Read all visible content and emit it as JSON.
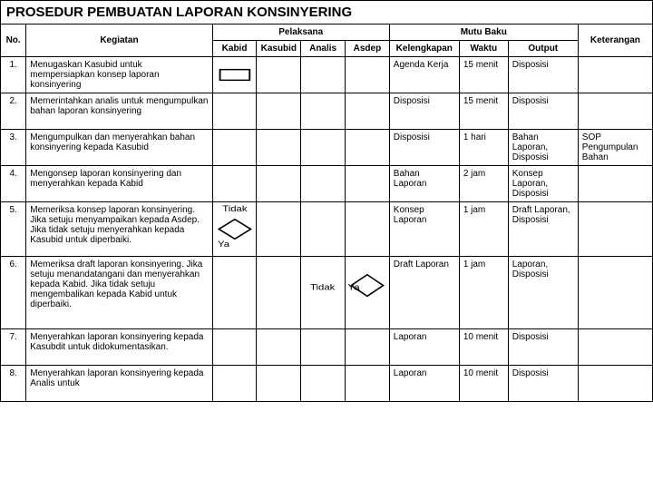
{
  "title": "PROSEDUR PEMBUATAN LAPORAN KONSINYERING",
  "headers": {
    "no": "No.",
    "kegiatan": "Kegiatan",
    "pelaksana": "Pelaksana",
    "mutu": "Mutu Baku",
    "keterangan": "Keterangan",
    "p1": "Kabid",
    "p2": "Kasubid",
    "p3": "Analis",
    "p4": "Asdep",
    "m1": "Kelengkapan",
    "m2": "Waktu",
    "m3": "Output"
  },
  "rows": [
    {
      "no": "1.",
      "kegiatan": "Menugaskan Kasubid untuk mempersiapkan konsep laporan konsinyering",
      "kelengkapan": "Agenda Kerja",
      "waktu": "15 menit",
      "output": "Disposisi",
      "ket": ""
    },
    {
      "no": "2.",
      "kegiatan": "Memerintahkan analis untuk mengumpulkan bahan laporan konsinyering",
      "kelengkapan": "Disposisi",
      "waktu": "15 menit",
      "output": "Disposisi",
      "ket": ""
    },
    {
      "no": "3.",
      "kegiatan": "Mengumpulkan dan menyerahkan bahan konsinyering kepada Kasubid",
      "kelengkapan": "Disposisi",
      "waktu": "1 hari",
      "output": "Bahan Laporan, Disposisi",
      "ket": "SOP Pengumpulan Bahan"
    },
    {
      "no": "4.",
      "kegiatan": "Mengonsep laporan konsinyering dan menyerahkan kepada Kabid",
      "kelengkapan": "Bahan Laporan",
      "waktu": "2 jam",
      "output": "Konsep Laporan, Disposisi",
      "ket": ""
    },
    {
      "no": "5.",
      "kegiatan": "Memeriksa konsep laporan konsinyering. Jika setuju menyampaikan kepada Asdep. Jika tidak setuju menyerahkan kepada Kasubid untuk diperbaiki.",
      "kelengkapan": "Konsep Laporan",
      "waktu": "1 jam",
      "output": "Draft Laporan, Disposisi",
      "ket": ""
    },
    {
      "no": "6.",
      "kegiatan": "Memeriksa draft laporan konsinyering. Jika setuju menandatangani dan menyerahkan kepada Kabid. Jika tidak setuju mengembalikan kepada Kabid untuk diperbaiki.",
      "kelengkapan": "Draft Laporan",
      "waktu": "1 jam",
      "output": "Laporan, Disposisi",
      "ket": ""
    },
    {
      "no": "7.",
      "kegiatan": "Menyerahkan laporan konsinyering kepada Kasubdit untuk didokumentasikan.",
      "kelengkapan": "Laporan",
      "waktu": "10 menit",
      "output": "Disposisi",
      "ket": ""
    },
    {
      "no": "8.",
      "kegiatan": "Menyerahkan laporan konsinyering kepada Analis untuk",
      "kelengkapan": "Laporan",
      "waktu": "10 menit",
      "output": "Disposisi",
      "ket": ""
    }
  ],
  "labels": {
    "tidak": "Tidak",
    "ya": "Ya"
  },
  "style": {
    "stroke": "#000",
    "fill": "#fff",
    "sw": 1.5,
    "rect_w": 26,
    "rect_h": 12,
    "diamond_w": 28,
    "diamond_h": 22
  }
}
